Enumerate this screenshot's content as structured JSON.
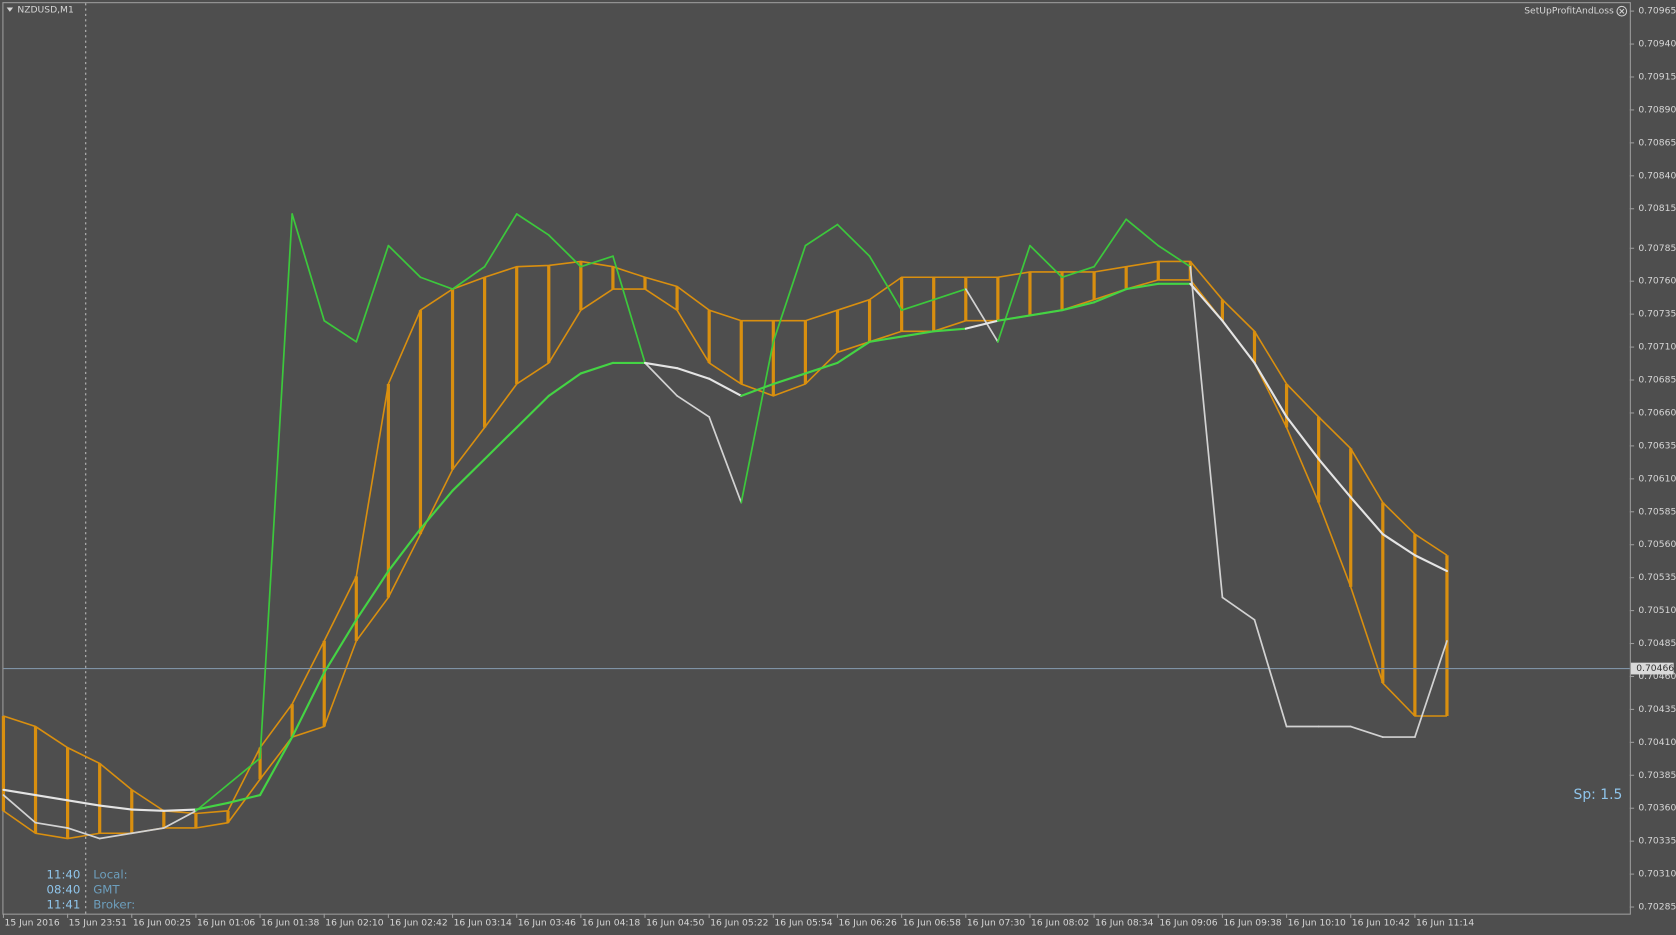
{
  "header": {
    "symbol": "NZDUSD,M1",
    "indicator": "SetUpProfitAndLoss"
  },
  "clock": [
    {
      "time": "11:40",
      "label": "Local:"
    },
    {
      "time": "08:40",
      "label": "GMT"
    },
    {
      "time": "11:41",
      "label": "Broker:"
    }
  ],
  "chart_data": {
    "type": "line",
    "annotations": [
      "Sp: 1.5"
    ],
    "bid": 0.70466,
    "ylim": [
      0.7028,
      0.70971
    ],
    "yticks": [
      0.70965,
      {
        "value": 0.7094,
        "label": "0.70940"
      },
      0.70915,
      {
        "value": 0.7089,
        "label": "0.70890"
      },
      0.70865,
      {
        "value": 0.7084,
        "label": "0.70840"
      },
      0.70815,
      0.70785,
      {
        "value": 0.7076,
        "label": "0.70760"
      },
      0.70735,
      {
        "value": 0.7071,
        "label": "0.70710"
      },
      0.70685,
      {
        "value": 0.7066,
        "label": "0.70660"
      },
      0.70635,
      {
        "value": 0.7061,
        "label": "0.70610"
      },
      0.70585,
      {
        "value": 0.7056,
        "label": "0.70560"
      },
      0.70535,
      {
        "value": 0.7051,
        "label": "0.70510"
      },
      0.70485,
      {
        "value": 0.7046,
        "label": "0.70460"
      },
      0.70435,
      {
        "value": 0.7041,
        "label": "0.70410"
      },
      0.70385,
      {
        "value": 0.7036,
        "label": "0.70360"
      },
      0.70335,
      {
        "value": 0.7031,
        "label": "0.70310"
      },
      0.70285
    ],
    "xlim": [
      0,
      50.7
    ],
    "xticks": [
      {
        "value": 0,
        "label": "15 Jun 2016"
      },
      {
        "value": 2,
        "label": "15 Jun 23:51"
      },
      {
        "value": 4,
        "label": "16 Jun 00:25"
      },
      {
        "value": 6,
        "label": "16 Jun 01:06"
      },
      {
        "value": 8,
        "label": "16 Jun 01:38"
      },
      {
        "value": 10,
        "label": "16 Jun 02:10"
      },
      {
        "value": 12,
        "label": "16 Jun 02:42"
      },
      {
        "value": 14,
        "label": "16 Jun 03:14"
      },
      {
        "value": 16,
        "label": "16 Jun 03:46"
      },
      {
        "value": 18,
        "label": "16 Jun 04:18"
      },
      {
        "value": 20,
        "label": "16 Jun 04:50"
      },
      {
        "value": 22,
        "label": "16 Jun 05:22"
      },
      {
        "value": 24,
        "label": "16 Jun 05:54"
      },
      {
        "value": 26,
        "label": "16 Jun 06:26"
      },
      {
        "value": 28,
        "label": "16 Jun 06:58"
      },
      {
        "value": 30,
        "label": "16 Jun 07:30"
      },
      {
        "value": 32,
        "label": "16 Jun 08:02"
      },
      {
        "value": 34,
        "label": "16 Jun 08:34"
      },
      {
        "value": 36,
        "label": "16 Jun 09:06"
      },
      {
        "value": 38,
        "label": "16 Jun 09:38"
      },
      {
        "value": 40,
        "label": "16 Jun 10:10"
      },
      {
        "value": 42,
        "label": "16 Jun 10:42"
      },
      {
        "value": 44,
        "label": "16 Jun 11:14"
      }
    ],
    "series": [
      {
        "color": "#3cc83c",
        "color_below": "#d2d2d2",
        "values": [
          0.7037,
          0.70349,
          0.70345,
          0.70337,
          0.70341,
          0.70345,
          0.70358,
          0.70378,
          0.70398,
          0.70811,
          0.7073,
          0.70714,
          0.70787,
          0.70763,
          0.70754,
          0.70771,
          0.70811,
          0.70795,
          0.70771,
          0.70779,
          0.70698,
          0.70673,
          0.70657,
          0.70592,
          0.70714,
          0.70787,
          0.70803,
          0.70779,
          0.70738,
          0.70746,
          0.70754,
          0.70714,
          0.70787,
          0.70763,
          0.70771,
          0.70807,
          0.70787,
          0.70771,
          0.7052,
          0.70503,
          0.70422,
          0.70422,
          0.70422,
          0.70414,
          0.70414,
          0.70487
        ]
      },
      {
        "color": "#44d444",
        "color_below": "#e4e4e4",
        "values": [
          0.70374,
          0.7037,
          0.70366,
          0.70362,
          0.70359,
          0.70358,
          0.70359,
          0.70364,
          0.7037,
          0.70414,
          0.70463,
          0.70503,
          0.7054,
          0.70572,
          0.70601,
          0.70625,
          0.70649,
          0.70673,
          0.7069,
          0.70698,
          0.70698,
          0.70694,
          0.70686,
          0.70673,
          0.70682,
          0.7069,
          0.70698,
          0.70714,
          0.70718,
          0.70722,
          0.70724,
          0.7073,
          0.70734,
          0.70738,
          0.70744,
          0.70754,
          0.70758,
          0.70758,
          0.7073,
          0.70698,
          0.70657,
          0.70625,
          0.70596,
          0.70568,
          0.70552,
          0.7054
        ]
      },
      {
        "color": "#d98f0f",
        "values": [
          0.7043,
          0.70422,
          0.70406,
          0.70394,
          0.70374,
          0.70358,
          0.70356,
          0.70358,
          0.70406,
          0.70439,
          0.70487,
          0.70536,
          0.70682,
          0.70738,
          0.70754,
          0.70763,
          0.70771,
          0.70772,
          0.70775,
          0.70771,
          0.70763,
          0.70756,
          0.70738,
          0.7073,
          0.7073,
          0.7073,
          0.70738,
          0.70746,
          0.70763,
          0.70763,
          0.70763,
          0.70763,
          0.70767,
          0.70767,
          0.70767,
          0.70771,
          0.70775,
          0.70775,
          0.70746,
          0.70722,
          0.70682,
          0.70657,
          0.70633,
          0.70592,
          0.70568,
          0.70552
        ]
      },
      {
        "color": "#d98f0f",
        "values": [
          0.70358,
          0.70341,
          0.70337,
          0.70341,
          0.70341,
          0.70345,
          0.70345,
          0.70349,
          0.70382,
          0.70414,
          0.70422,
          0.70487,
          0.7052,
          0.70568,
          0.70617,
          0.70649,
          0.70682,
          0.70698,
          0.70738,
          0.70754,
          0.70754,
          0.70738,
          0.70698,
          0.70682,
          0.70673,
          0.70682,
          0.70706,
          0.70714,
          0.70722,
          0.70722,
          0.7073,
          0.7073,
          0.70734,
          0.70738,
          0.70746,
          0.70754,
          0.70761,
          0.70761,
          0.7073,
          0.70698,
          0.70649,
          0.70592,
          0.70528,
          0.70455,
          0.7043,
          0.7043
        ]
      }
    ]
  }
}
